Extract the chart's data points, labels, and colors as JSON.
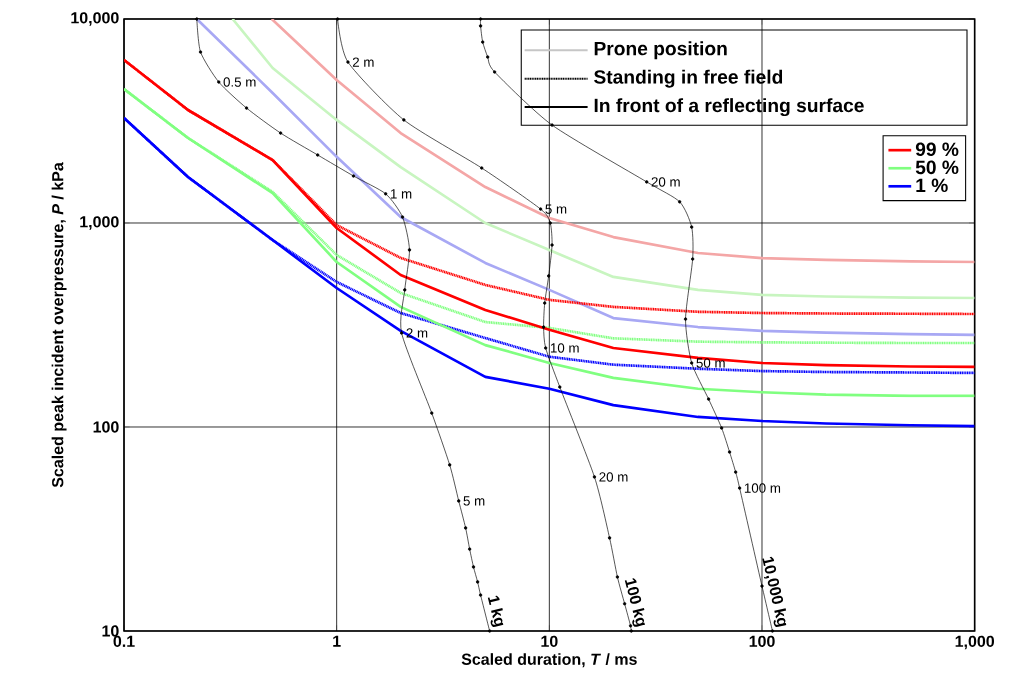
{
  "chart_data": {
    "type": "line",
    "xlabel": "Scaled duration, *T*  / ms",
    "ylabel": "Scaled peak incident overpressure, *P* / kPa",
    "log": "xy",
    "grid": true,
    "legend": "top right",
    "xlim": [
      0.1,
      1000
    ],
    "ylim": [
      10,
      10000
    ],
    "xticks": [
      0.1,
      1,
      10,
      100,
      {
        "value": 1000,
        "label": "1,000"
      }
    ],
    "yticks": [
      10,
      100,
      {
        "value": 1000,
        "label": "1,000"
      },
      {
        "value": 10000,
        "label": "10,000"
      }
    ],
    "series": [
      {
        "color": "#f4a6a6",
        "line_style": "solid",
        "x": [
          0.495,
          1,
          2,
          5,
          10,
          20,
          50,
          100,
          200,
          500,
          1000
        ],
        "values": [
          10000,
          5020,
          2760,
          1500,
          1058,
          853,
          713,
          673,
          660,
          648,
          644
        ]
      },
      {
        "color": "#c8f5c0",
        "line_style": "solid",
        "x": [
          0.324,
          0.5,
          1,
          2,
          5,
          10,
          20,
          50,
          100,
          200,
          500,
          1000
        ],
        "values": [
          10000,
          5750,
          3200,
          1880,
          1000,
          737,
          544,
          470,
          444,
          436,
          431,
          429
        ]
      },
      {
        "color": "#a8a8f4",
        "line_style": "solid",
        "x": [
          0.22,
          0.5,
          1,
          2,
          5,
          10,
          20,
          50,
          100,
          200,
          500,
          1000
        ],
        "values": [
          10000,
          4340,
          2110,
          1070,
          637,
          470,
          342,
          309,
          296,
          290,
          285,
          283
        ]
      },
      {
        "color": "#ff0000",
        "line_style": "dotted",
        "x": [
          0.1,
          0.2,
          0.5,
          1,
          2,
          5,
          10,
          20,
          50,
          100,
          200,
          500,
          1000
        ],
        "values": [
          6300,
          3580,
          2035,
          977,
          674,
          497,
          420,
          388,
          367,
          362,
          360,
          359,
          358
        ]
      },
      {
        "color": "#80ff80",
        "line_style": "dotted",
        "x": [
          0.1,
          0.2,
          0.5,
          1,
          2,
          5,
          10,
          20,
          50,
          100,
          200,
          500,
          1000
        ],
        "values": [
          4540,
          2610,
          1420,
          697,
          454,
          327,
          306,
          272,
          262,
          260,
          259,
          258,
          258
        ]
      },
      {
        "color": "#0000ff",
        "line_style": "dotted",
        "x": [
          0.1,
          0.2,
          0.5,
          1,
          2,
          5,
          10,
          20,
          50,
          100,
          200,
          500,
          1000
        ],
        "values": [
          3270,
          1680,
          825,
          514,
          362,
          273,
          221,
          202,
          193,
          188,
          186,
          185,
          184
        ]
      },
      {
        "name": "99 %",
        "color": "#ff0000",
        "line_style": "solid",
        "x": [
          0.1,
          0.2,
          0.5,
          1,
          2,
          5,
          10,
          20,
          50,
          100,
          200,
          500,
          1000
        ],
        "values": [
          6300,
          3580,
          2035,
          945,
          556,
          375,
          300,
          244,
          218,
          206,
          201,
          198,
          197
        ]
      },
      {
        "name": "50 %",
        "color": "#80ff80",
        "line_style": "solid",
        "x": [
          0.1,
          0.2,
          0.5,
          1,
          2,
          5,
          10,
          20,
          50,
          100,
          200,
          500,
          1000
        ],
        "values": [
          4540,
          2610,
          1400,
          644,
          388,
          252,
          206,
          174,
          154,
          148,
          144,
          142,
          142
        ]
      },
      {
        "name": "1 %",
        "color": "#0000ff",
        "line_style": "solid",
        "x": [
          0.1,
          0.2,
          0.5,
          1,
          2,
          5,
          10,
          20,
          50,
          100,
          200,
          500,
          1000
        ],
        "values": [
          3270,
          1680,
          825,
          480,
          296,
          176,
          154,
          128,
          112,
          107,
          104,
          102,
          101
        ]
      },
      {
        "name": "1 kg",
        "color": "#000000",
        "line_style": "solid",
        "marker": "circle",
        "x": [
          0.22,
          0.229,
          0.279,
          0.377,
          0.545,
          0.814,
          1.2,
          1.7,
          2.04,
          2.2,
          2.09,
          2.02,
          2.8,
          3.4,
          3.75,
          4.04,
          4.22,
          4.4,
          4.6,
          4.75,
          5.24
        ],
        "values": [
          10000,
          6890,
          4910,
          3660,
          2760,
          2155,
          1700,
          1390,
          1070,
          738,
          470,
          289,
          117,
          65.2,
          43.4,
          32.0,
          25.2,
          20.6,
          17.4,
          15.0,
          10
        ]
      },
      {
        "name": "100 kg",
        "color": "#000000",
        "line_style": "solid",
        "marker": "circle",
        "x": [
          1.01,
          1.13,
          2.07,
          4.81,
          9.1,
          10.1,
          10.3,
          9.93,
          9.51,
          9.4,
          9.61,
          11.2,
          16.3,
          19.2,
          20.9,
          22.6,
          24.1,
          24.3
        ],
        "values": [
          10000,
          6150,
          3200,
          1860,
          1170,
          1000,
          780,
          550,
          405,
          309,
          244,
          157,
          56.9,
          28.6,
          18.4,
          13.6,
          10.6,
          10
        ]
      },
      {
        "name": "10,000 kg",
        "color": "#000000",
        "line_style": "solid",
        "marker": "circle",
        "x": [
          4.75,
          4.75,
          4.86,
          5.13,
          5.53,
          10.3,
          28.7,
          41.0,
          46.7,
          47.2,
          43.7,
          46.7,
          56.1,
          64.6,
          70.4,
          75.2,
          78.5,
          100,
          112
        ],
        "values": [
          10000,
          9250,
          7710,
          6510,
          5500,
          3020,
          1590,
          1270,
          955,
          666,
          338,
          206,
          137,
          98.9,
          75.4,
          60.1,
          50.2,
          16.6,
          10
        ]
      }
    ],
    "annotations": [
      "Prone position",
      "Standing in free field",
      "In front of a reflecting surface",
      {
        "text": "0.5 m",
        "x": 0.279,
        "y": 4910
      },
      {
        "text": "1 m",
        "x": 1.7,
        "y": 1390
      },
      {
        "text": "2 m",
        "x": 2.02,
        "y": 289
      },
      {
        "text": "5 m",
        "x": 3.75,
        "y": 43.4
      },
      {
        "text": "2 m",
        "x": 1.13,
        "y": 6150
      },
      {
        "text": "5 m",
        "x": 9.1,
        "y": 1170
      },
      {
        "text": "10 m",
        "x": 9.61,
        "y": 244
      },
      {
        "text": "20 m",
        "x": 16.3,
        "y": 56.9
      },
      {
        "text": "20 m",
        "x": 28.7,
        "y": 1590
      },
      {
        "text": "50 m",
        "x": 46.7,
        "y": 206
      },
      {
        "text": "100 m",
        "x": 78.5,
        "y": 50.2
      }
    ]
  }
}
